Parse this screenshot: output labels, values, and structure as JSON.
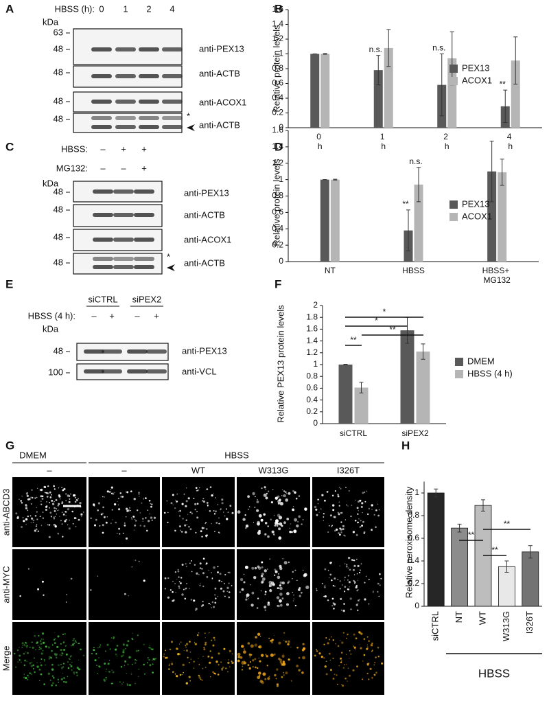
{
  "blots": [
    {
      "label": "A",
      "conditions": [
        {
          "label": "HBSS (h):",
          "lanes": [
            "0",
            "1",
            "2",
            "4"
          ]
        }
      ],
      "unit": "kDa",
      "rows": [
        {
          "markers": [
            "63",
            "48"
          ],
          "antibody": "anti-PEX13"
        },
        {
          "markers": [
            "48"
          ],
          "antibody": "anti-ACTB"
        },
        {
          "markers": [
            "48"
          ],
          "antibody": "anti-ACOX1"
        },
        {
          "markers": [
            "48"
          ],
          "antibody": "anti-ACTB"
        }
      ],
      "star": "*"
    },
    {
      "label": "C",
      "conditions": [
        {
          "label": "HBSS:",
          "lanes": [
            "–",
            "+",
            "+"
          ]
        },
        {
          "label": "MG132:",
          "lanes": [
            "–",
            "–",
            "+"
          ]
        }
      ],
      "unit": "kDa",
      "rows": [
        {
          "markers": [
            "48"
          ],
          "antibody": "anti-PEX13"
        },
        {
          "markers": [
            "48"
          ],
          "antibody": "anti-ACTB"
        },
        {
          "markers": [
            "48"
          ],
          "antibody": "anti-ACOX1"
        },
        {
          "markers": [
            "48"
          ],
          "antibody": "anti-ACTB"
        }
      ],
      "star": "*"
    },
    {
      "label": "E",
      "groups": [
        "siCTRL",
        "siPEX2"
      ],
      "conditions": [
        {
          "label": "HBSS (4 h):",
          "lanes": [
            "–",
            "+",
            "–",
            "+"
          ]
        }
      ],
      "unit": "kDa",
      "rows": [
        {
          "markers": [
            "48"
          ],
          "antibody": "anti-PEX13"
        },
        {
          "markers": [
            "100"
          ],
          "antibody": "anti-VCL"
        }
      ]
    }
  ],
  "chart_data": [
    {
      "type": "bar",
      "label": "B",
      "y_label": "Relative protein levels",
      "categories": [
        "0 h",
        "1 h",
        "2 h",
        "4 h"
      ],
      "series": [
        {
          "name": "PEX13",
          "color": "#595959",
          "values": [
            1,
            0.78,
            0.58,
            0.29
          ],
          "errors": [
            0,
            0.2,
            0.42,
            0.22
          ],
          "significance": [
            null,
            "n.s.",
            "n.s.",
            "**"
          ]
        },
        {
          "name": "ACOX1",
          "color": "#b5b5b5",
          "values": [
            1,
            1.08,
            0.94,
            0.91
          ],
          "errors": [
            0.005,
            0.25,
            0.36,
            0.32
          ]
        }
      ],
      "ylim": [
        0,
        1.6
      ],
      "yticks": [
        0,
        0.2,
        0.4,
        0.6,
        0.8,
        1,
        1.2,
        1.4,
        1.6
      ],
      "legend": "right"
    },
    {
      "type": "bar",
      "label": "D",
      "y_label": "Relative protein levels",
      "categories": [
        "NT",
        "HBSS",
        "HBSS+ MG132"
      ],
      "series": [
        {
          "name": "PEX13",
          "color": "#595959",
          "values": [
            1,
            0.38,
            1.1
          ],
          "errors": [
            0,
            0.25,
            0.37
          ],
          "significance": [
            null,
            "**",
            null
          ]
        },
        {
          "name": "ACOX1",
          "color": "#b5b5b5",
          "values": [
            1,
            0.94,
            1.09
          ],
          "errors": [
            0.005,
            0.21,
            0.16
          ],
          "significance": [
            null,
            "n.s.",
            null
          ]
        }
      ],
      "ylim": [
        0,
        1.6
      ],
      "yticks": [
        0,
        0.2,
        0.4,
        0.6,
        0.8,
        1,
        1.2,
        1.4,
        1.6
      ],
      "legend": "right"
    },
    {
      "type": "bar",
      "label": "F",
      "y_label": "Relative PEX13 protein levels",
      "categories": [
        "siCTRL",
        "siPEX2"
      ],
      "series": [
        {
          "name": "DMEM",
          "color": "#595959",
          "values": [
            1,
            1.58
          ],
          "errors": [
            0.005,
            0.22
          ]
        },
        {
          "name": "HBSS (4 h)",
          "color": "#b5b5b5",
          "values": [
            0.61,
            1.22
          ],
          "errors": [
            0.09,
            0.13
          ]
        }
      ],
      "ylim": [
        0,
        2
      ],
      "yticks": [
        0,
        0.2,
        0.4,
        0.6,
        0.8,
        1,
        1.2,
        1.4,
        1.6,
        1.8,
        2
      ],
      "legend": "right",
      "brackets": [
        "*",
        "*",
        "**",
        "**"
      ]
    },
    {
      "type": "bar",
      "label": "H",
      "y_label": "Relative peroxisome density",
      "categories": [
        "siCTRL",
        "NT",
        "WT",
        "W313G",
        "I326T"
      ],
      "values": [
        1,
        0.69,
        0.89,
        0.35,
        0.48
      ],
      "errors": [
        0.035,
        0.035,
        0.05,
        0.05,
        0.055
      ],
      "colors": [
        "#262626",
        "#8c8c8c",
        "#bdbdbd",
        "#e8e8e8",
        "#737373"
      ],
      "ylim": [
        0,
        1.1
      ],
      "yticks": [
        0,
        0.2,
        0.4,
        0.6,
        0.8,
        1
      ],
      "group_label": "HBSS",
      "brackets": [
        "**",
        "**",
        "**"
      ]
    }
  ],
  "microscopy": {
    "label": "G",
    "groups": [
      "DMEM",
      "HBSS"
    ],
    "columns": [
      "–",
      "–",
      "WT",
      "W313G",
      "I326T"
    ],
    "rows": [
      "anti-ABCD3",
      "anti-MYC",
      "Merge"
    ]
  }
}
